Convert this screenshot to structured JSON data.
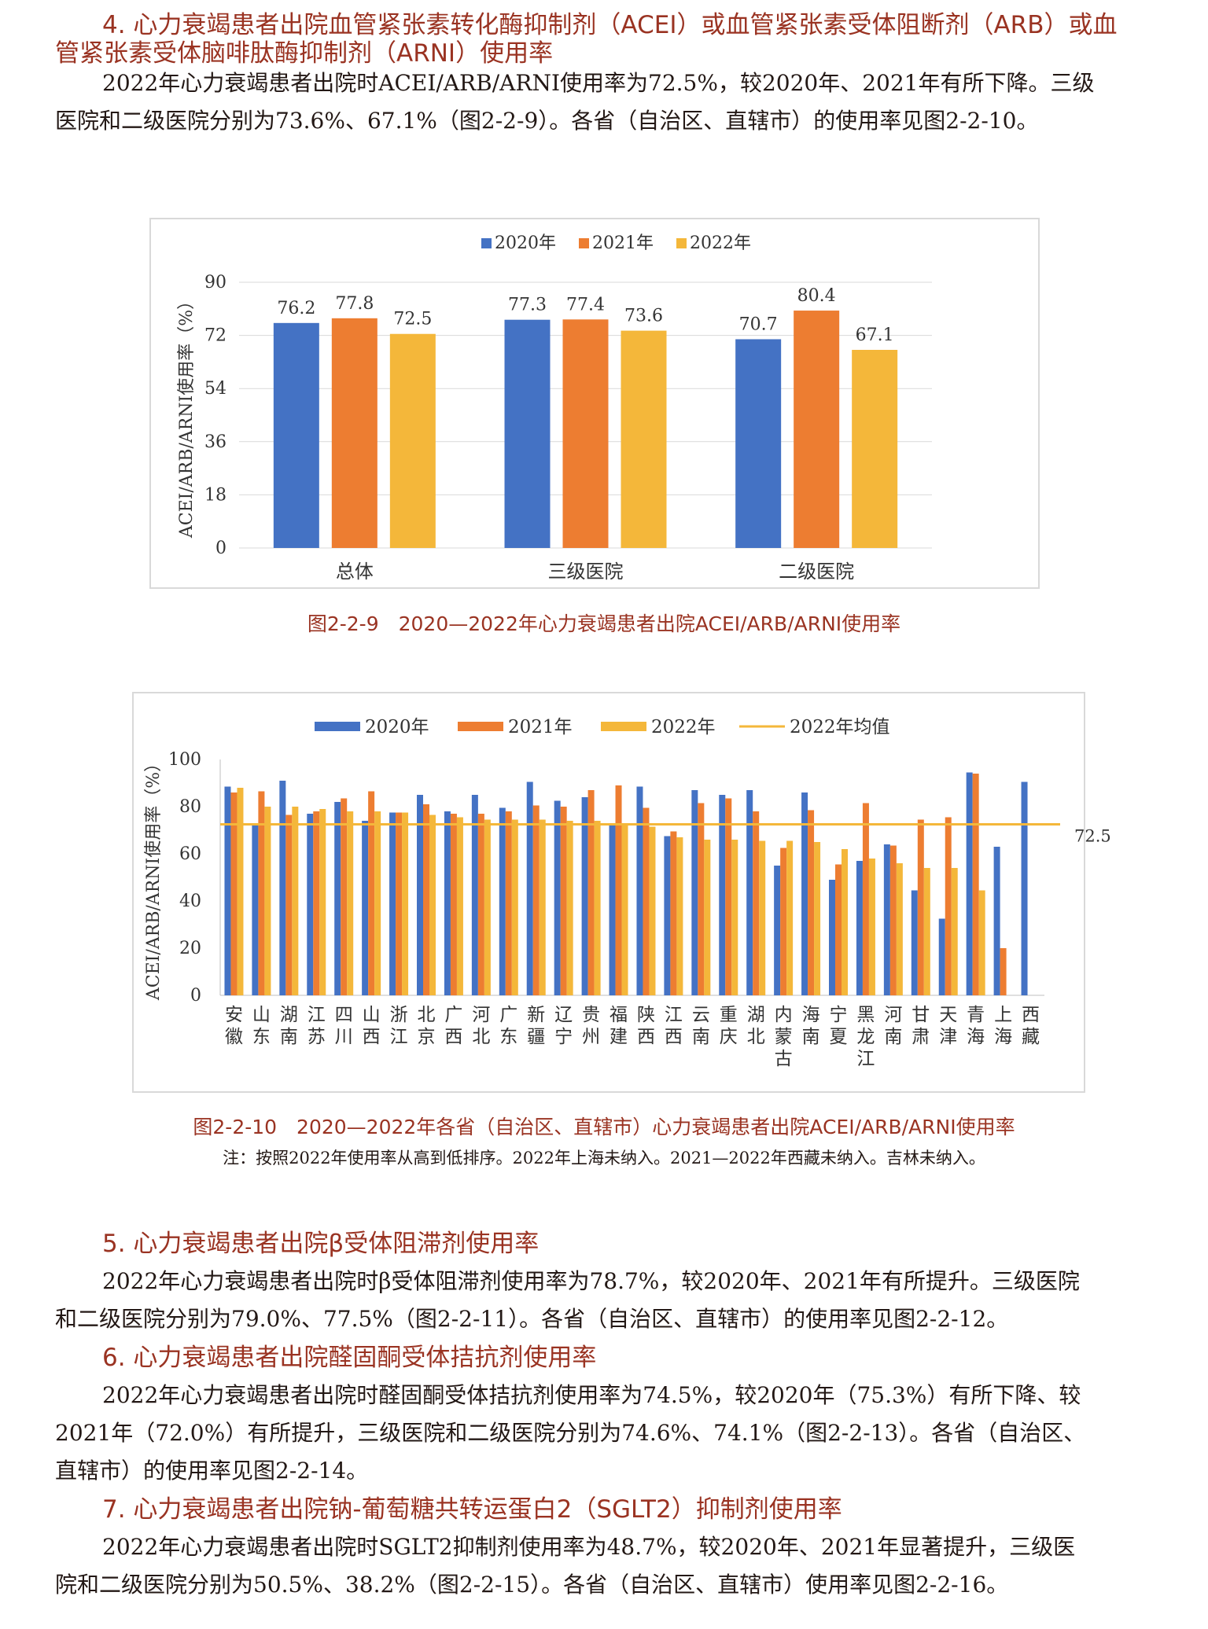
{
  "section4": {
    "heading_line1": "4. 心力衰竭患者出院血管紧张素转化酶抑制剂（ACEI）或血管紧张素受体阻断剂（ARB）或血",
    "heading_line2": "管紧张素受体脑啡肽酶抑制剂（ARNI）使用率",
    "paragraph_line1": "2022年心力衰竭患者出院时ACEI/ARB/ARNI使用率为72.5%，较2020年、2021年有所下降。三级",
    "paragraph_line2": "医院和二级医院分别为73.6%、67.1%（图2-2-9）。各省（自治区、直辖市）的使用率见图2-2-10。"
  },
  "figure1": {
    "caption": "图2-2-9　2020—2022年心力衰竭患者出院ACEI/ARB/ARNI使用率",
    "colors": {
      "2020年": "#4472c4",
      "2021年": "#ed7d31",
      "2022年": "#f4b73a"
    }
  },
  "figure2": {
    "caption": "图2-2-10　2020—2022年各省（自治区、直辖市）心力衰竭患者出院ACEI/ARB/ARNI使用率",
    "note": "注：按照2022年使用率从高到低排序。2022年上海未纳入。2021—2022年西藏未纳入。吉林未纳入。",
    "colors": {
      "2020年": "#4472c4",
      "2021年": "#ed7d31",
      "2022年": "#f4b73a",
      "2022年均值": "#f4b73a"
    }
  },
  "section5": {
    "heading": "5. 心力衰竭患者出院β受体阻滞剂使用率",
    "paragraph_line1": "2022年心力衰竭患者出院时β受体阻滞剂使用率为78.7%，较2020年、2021年有所提升。三级医院",
    "paragraph_line2": "和二级医院分别为79.0%、77.5%（图2-2-11）。各省（自治区、直辖市）的使用率见图2-2-12。"
  },
  "section6": {
    "heading": "6. 心力衰竭患者出院醛固酮受体拮抗剂使用率",
    "paragraph_line1": "2022年心力衰竭患者出院时醛固酮受体拮抗剂使用率为74.5%，较2020年（75.3%）有所下降、较",
    "paragraph_line2": "2021年（72.0%）有所提升，三级医院和二级医院分别为74.6%、74.1%（图2-2-13）。各省（自治区、",
    "paragraph_line3": "直辖市）的使用率见图2-2-14。"
  },
  "section7": {
    "heading": "7. 心力衰竭患者出院钠-葡萄糖共转运蛋白2（SGLT2）抑制剂使用率",
    "paragraph_line1": "2022年心力衰竭患者出院时SGLT2抑制剂使用率为48.7%，较2020年、2021年显著提升，三级医",
    "paragraph_line2": "院和二级医院分别为50.5%、38.2%（图2-2-15）。各省（自治区、直辖市）使用率见图2-2-16。"
  },
  "chart_data": [
    {
      "type": "bar",
      "categories": [
        "总体",
        "三级医院",
        "二级医院"
      ],
      "series": [
        {
          "name": "2020年",
          "values": [
            76.2,
            77.3,
            70.7
          ]
        },
        {
          "name": "2021年",
          "values": [
            77.8,
            77.4,
            80.4
          ]
        },
        {
          "name": "2022年",
          "values": [
            72.5,
            73.6,
            67.1
          ]
        }
      ],
      "ylabel": "ACEI/ARB/ARNI使用率（%）",
      "ylim": [
        0,
        90
      ],
      "yticks": [
        0,
        18,
        36,
        54,
        72,
        90
      ],
      "legend": "top",
      "data_labels": true
    },
    {
      "type": "bar",
      "categories": [
        "安徽",
        "山东",
        "湖南",
        "江苏",
        "四川",
        "山西",
        "浙江",
        "北京",
        "广西",
        "河北",
        "广东",
        "新疆",
        "辽宁",
        "贵州",
        "福建",
        "陕西",
        "江西",
        "云南",
        "重庆",
        "湖北",
        "内蒙古",
        "海南",
        "宁夏",
        "黑龙江",
        "河南",
        "甘肃",
        "天津",
        "青海",
        "上海",
        "西藏"
      ],
      "series": [
        {
          "name": "2020年",
          "values": [
            88.5,
            72.5,
            91,
            77,
            82,
            74,
            77.5,
            85,
            78,
            85,
            79.5,
            90.5,
            82.5,
            84,
            72,
            88.5,
            67.5,
            87,
            85,
            87,
            55,
            86,
            49,
            57,
            64,
            44.5,
            32.5,
            94.5,
            63,
            90.5
          ]
        },
        {
          "name": "2021年",
          "values": [
            86,
            86.5,
            76.5,
            78,
            83.5,
            86.5,
            77.5,
            81,
            77,
            77,
            78,
            80.5,
            80,
            87,
            89,
            79.5,
            69.5,
            81.5,
            83.5,
            78,
            62.5,
            78.5,
            55.5,
            81.5,
            63.5,
            74.5,
            75.5,
            94,
            20,
            null
          ]
        },
        {
          "name": "2022年",
          "values": [
            88,
            80,
            80,
            79,
            78,
            78,
            77.5,
            76.5,
            75.5,
            74.5,
            74.5,
            74.5,
            74,
            74,
            73,
            71.5,
            67,
            66,
            66,
            65.5,
            65.5,
            65,
            62,
            58,
            56,
            54,
            54,
            44.5,
            null,
            null
          ]
        },
        {
          "name": "2022年均值",
          "type": "line",
          "value": 72.5
        }
      ],
      "ylabel": "ACEI/ARB/ARNI使用率（%）",
      "ylim": [
        0,
        100
      ],
      "yticks": [
        0,
        20,
        40,
        60,
        80,
        100
      ],
      "mean_label": "72.5",
      "legend": "top"
    }
  ]
}
